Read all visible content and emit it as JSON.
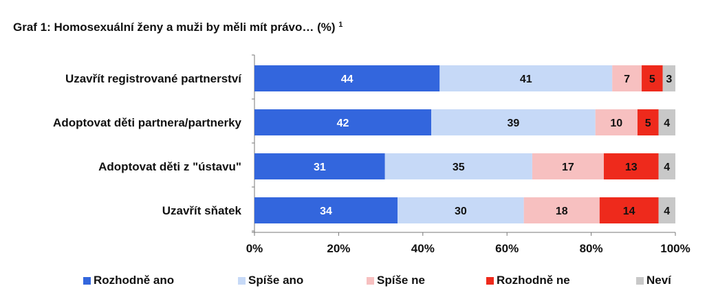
{
  "chart_data": {
    "type": "bar",
    "orientation": "horizontal",
    "stacked": "percent",
    "title": "Graf 1: Homosexuální ženy a muži by měli mít právo… (%)",
    "title_superscript": "1",
    "categories": [
      "Uzavřít registrované partnerství",
      "Adoptovat děti partnera/partnerky",
      "Adoptovat děti z \"ústavu\"",
      "Uzavřít sňatek"
    ],
    "series": [
      {
        "name": "Rozhodně ano",
        "color": "#3366dd",
        "label_color": "#ffffff",
        "values": [
          44,
          42,
          31,
          34
        ]
      },
      {
        "name": "Spíše ano",
        "color": "#c6d9f7",
        "label_color": "#111111",
        "values": [
          41,
          39,
          35,
          30
        ]
      },
      {
        "name": "Spíše ne",
        "color": "#f7c0c0",
        "label_color": "#111111",
        "values": [
          7,
          10,
          17,
          18
        ]
      },
      {
        "name": "Rozhodně ne",
        "color": "#ee2a1c",
        "label_color": "#111111",
        "values": [
          5,
          5,
          13,
          14
        ]
      },
      {
        "name": "Neví",
        "color": "#c8c8c8",
        "label_color": "#111111",
        "values": [
          3,
          4,
          4,
          4
        ]
      }
    ],
    "xlim": [
      0,
      100
    ],
    "xticks": [
      "0%",
      "20%",
      "40%",
      "60%",
      "80%",
      "100%"
    ],
    "grid": false,
    "legend_position": "bottom"
  }
}
